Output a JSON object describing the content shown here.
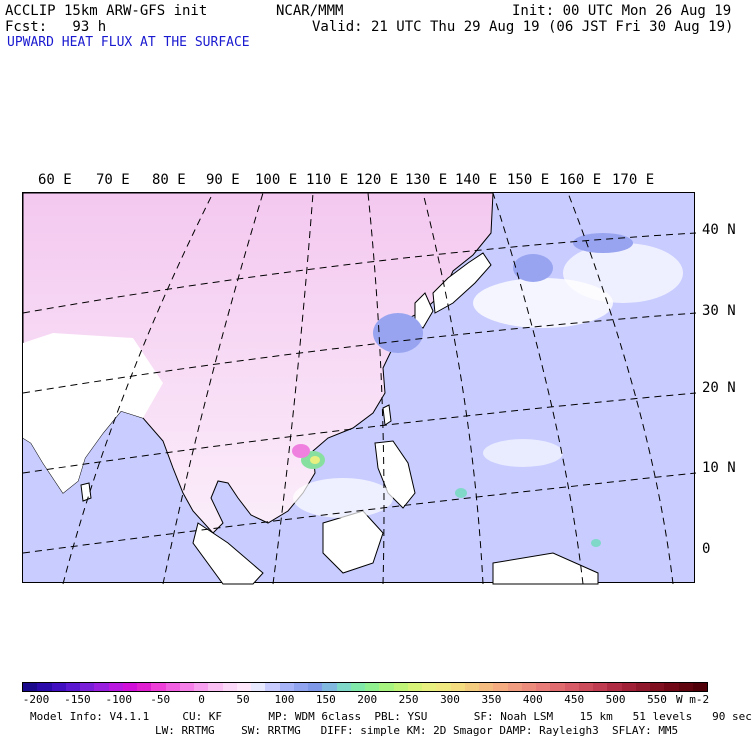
{
  "header": {
    "model_line": "ACCLIP 15km ARW-GFS init",
    "org": "NCAR/MMM",
    "init": "Init: 00 UTC Mon 26 Aug 19",
    "fcst": "Fcst:   93 h",
    "valid": "Valid: 21 UTC Thu 29 Aug 19 (06 JST Fri 30 Aug 19)",
    "field_title": "UPWARD HEAT FLUX AT THE SURFACE"
  },
  "map": {
    "lon_labels": [
      "60 E",
      "70 E",
      "80 E",
      "90 E",
      "100 E",
      "110 E",
      "120 E",
      "130 E",
      "140 E",
      "150 E",
      "160 E",
      "170 E"
    ],
    "lat_labels": [
      "40 N",
      "30 N",
      "20 N",
      "10 N",
      "0"
    ],
    "colors": {
      "ocean": "#c8ccff",
      "land": "#ffffff",
      "land_pink": "#f8d8f4",
      "coast": "#000000"
    }
  },
  "colorbar": {
    "tick_labels": [
      "-200",
      "-150",
      "-100",
      "-50",
      "0",
      "50",
      "100",
      "150",
      "200",
      "250",
      "300",
      "350",
      "400",
      "450",
      "500",
      "550"
    ],
    "units": "W m-2",
    "colors": [
      "#1c0a8c",
      "#2a0aa8",
      "#4010c0",
      "#5a18d0",
      "#7a20d8",
      "#9a20e0",
      "#b818e0",
      "#d010d8",
      "#e020d0",
      "#ee40d8",
      "#f060e0",
      "#f480e8",
      "#f8a0f0",
      "#fac0f4",
      "#fcd8f8",
      "#ffe8fc",
      "#e8e8ff",
      "#c8ccff",
      "#a8b4f8",
      "#90a4f0",
      "#8098e8",
      "#80b8e0",
      "#80d8c8",
      "#80e8a8",
      "#90f090",
      "#a8f480",
      "#c0f478",
      "#d8f478",
      "#e8f080",
      "#f0e880",
      "#f4dc80",
      "#f4cc80",
      "#f4bc80",
      "#f4ac80",
      "#f09c80",
      "#ec8c7c",
      "#e87c78",
      "#e06c70",
      "#d85c68",
      "#cc4c5c",
      "#c03c50",
      "#b02c44",
      "#a02038",
      "#90182c",
      "#801020",
      "#700818",
      "#600410",
      "#500008"
    ]
  },
  "model_info": {
    "line1": "Model Info: V4.1.1     CU: KF       MP: WDM 6class  PBL: YSU       SF: Noah LSM    15 km   51 levels   90 sec",
    "line2": "LW: RRTMG    SW: RRTMG   DIFF: simple KM: 2D Smagor DAMP: Rayleigh3  SFLAY: MM5"
  }
}
